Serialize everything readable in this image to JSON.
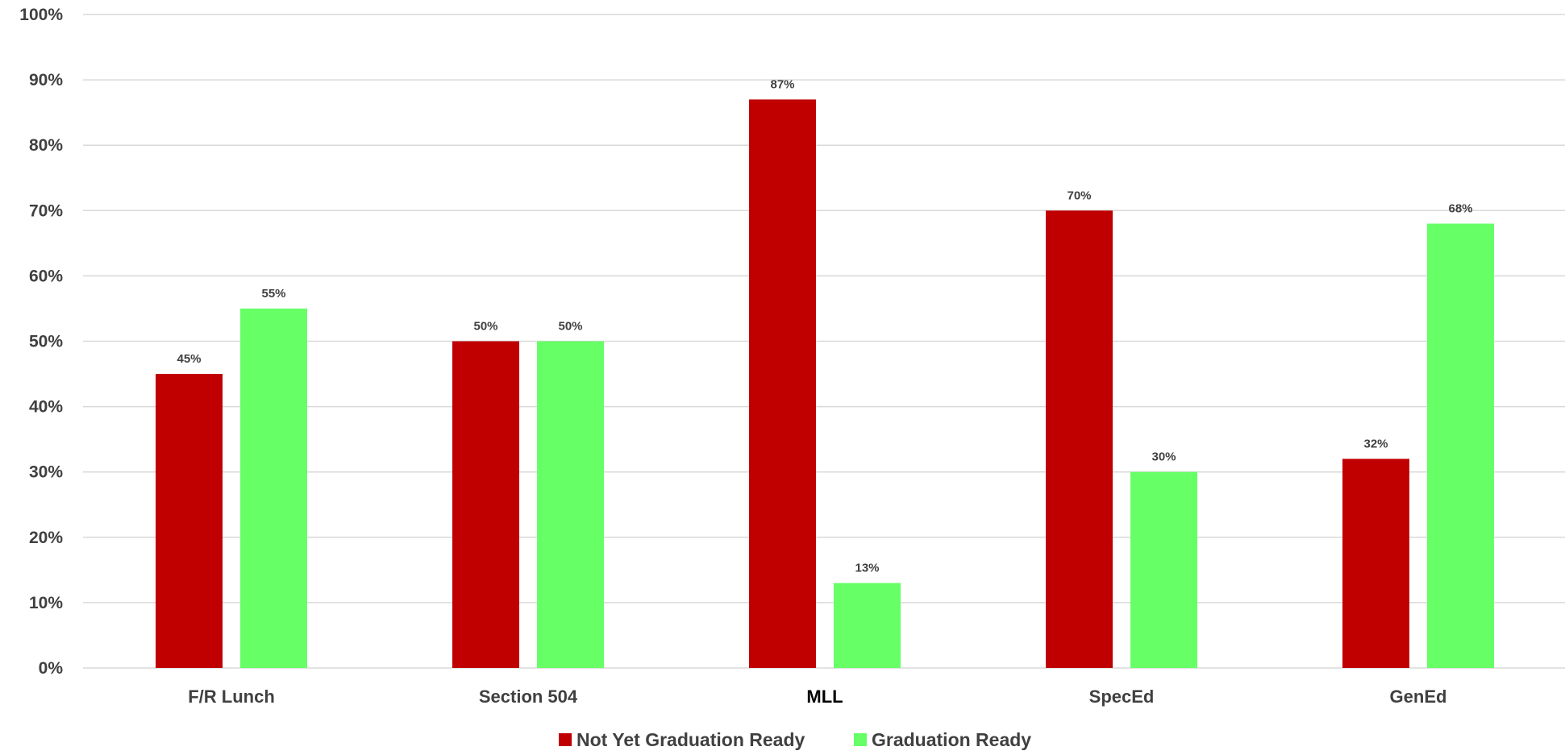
{
  "colors": {
    "not_ready": "#c00000",
    "ready": "#66ff66",
    "grid": "#d9d9d9",
    "axis_text": "#404040"
  },
  "chart_data": {
    "type": "bar",
    "title": "",
    "xlabel": "",
    "ylabel": "",
    "categories": [
      "F/R Lunch",
      "Section 504",
      "MLL",
      "SpecEd",
      "GenEd"
    ],
    "series": [
      {
        "name": "Not Yet Graduation Ready",
        "color": "#c00000",
        "values": [
          45,
          50,
          87,
          70,
          32
        ],
        "labels": [
          "45%",
          "50%",
          "87%",
          "70%",
          "32%"
        ]
      },
      {
        "name": "Graduation Ready",
        "color": "#66ff66",
        "values": [
          55,
          50,
          13,
          30,
          68
        ],
        "labels": [
          "55%",
          "50%",
          "13%",
          "30%",
          "68%"
        ]
      }
    ],
    "ylim": [
      0,
      100
    ],
    "y_ticks": [
      0,
      10,
      20,
      30,
      40,
      50,
      60,
      70,
      80,
      90,
      100
    ],
    "y_tick_labels": [
      "0%",
      "10%",
      "20%",
      "30%",
      "40%",
      "50%",
      "60%",
      "70%",
      "80%",
      "90%",
      "100%"
    ],
    "grid": true,
    "legend_position": "bottom"
  }
}
